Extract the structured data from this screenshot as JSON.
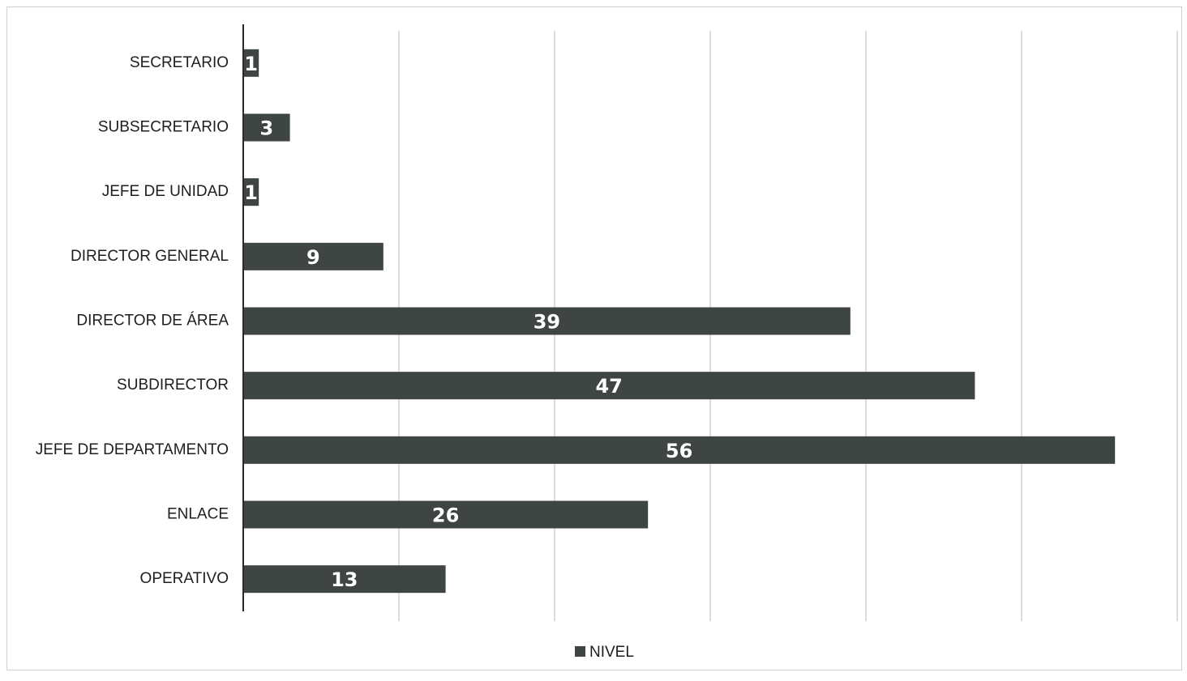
{
  "chart_data": {
    "type": "bar",
    "orientation": "horizontal",
    "categories": [
      "SECRETARIO",
      "SUBSECRETARIO",
      "JEFE DE UNIDAD",
      "DIRECTOR GENERAL",
      "DIRECTOR DE ÁREA",
      "SUBDIRECTOR",
      "JEFE DE DEPARTAMENTO",
      "ENLACE",
      "OPERATIVO"
    ],
    "series": [
      {
        "name": "NIVEL",
        "values": [
          1,
          3,
          1,
          9,
          39,
          47,
          56,
          26,
          13
        ],
        "color": "#3f4542"
      }
    ],
    "xlim": [
      0,
      60
    ],
    "x_gridline_step": 10,
    "x_tick_labels_shown": false,
    "data_labels": true,
    "grid": true,
    "legend": "bottom-center",
    "title": "",
    "xlabel": "",
    "ylabel": ""
  }
}
